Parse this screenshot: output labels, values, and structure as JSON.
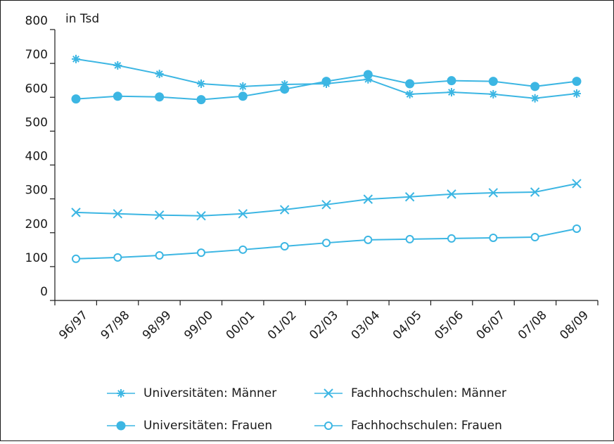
{
  "chart_data": {
    "type": "line",
    "annotation": "in Tsd",
    "categories": [
      "96/97",
      "97/98",
      "98/99",
      "99/00",
      "00/01",
      "01/02",
      "02/03",
      "03/04",
      "04/05",
      "05/06",
      "06/07",
      "07/08",
      "08/09"
    ],
    "series": [
      {
        "name": "Universitäten: Männer",
        "color": "#3cb6e3",
        "marker": "asterisk",
        "values": [
          713,
          694,
          669,
          640,
          632,
          638,
          640,
          653,
          609,
          615,
          609,
          597,
          611
        ]
      },
      {
        "name": "Universitäten: Frauen",
        "color": "#3cb6e3",
        "marker": "filled-circle",
        "values": [
          595,
          603,
          601,
          593,
          603,
          624,
          647,
          667,
          640,
          649,
          647,
          632,
          647
        ]
      },
      {
        "name": "Fachhochschulen: Männer",
        "color": "#3cb6e3",
        "marker": "cross",
        "values": [
          260,
          256,
          252,
          250,
          256,
          268,
          283,
          299,
          306,
          314,
          318,
          320,
          345
        ]
      },
      {
        "name": "Fachhochschulen: Frauen",
        "color": "#3cb6e3",
        "marker": "open-circle",
        "values": [
          123,
          127,
          133,
          141,
          150,
          160,
          170,
          179,
          181,
          183,
          185,
          187,
          212
        ]
      }
    ],
    "ylim": [
      0,
      800
    ],
    "yticks": [
      0,
      100,
      200,
      300,
      400,
      500,
      600,
      700,
      800
    ],
    "grid": false
  }
}
